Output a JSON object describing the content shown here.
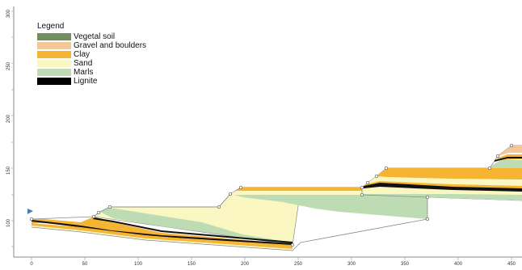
{
  "legend": {
    "title": "Legend",
    "items": [
      {
        "name": "vegetal-soil",
        "label": "Vegetal soil",
        "color": "#6f8f5e"
      },
      {
        "name": "gravel-and-boulders",
        "label": "Gravel and boulders",
        "color": "#f2c79a"
      },
      {
        "name": "clay",
        "label": "Clay",
        "color": "#f5b431"
      },
      {
        "name": "sand",
        "label": "Sand",
        "color": "#fbf7c2"
      },
      {
        "name": "marls",
        "label": "Marls",
        "color": "#bedcb4"
      },
      {
        "name": "lignite",
        "label": "Lignite",
        "color": "#000000"
      }
    ]
  },
  "axes": {
    "x_ticks": [
      "0",
      "50",
      "100",
      "150",
      "200",
      "250",
      "300",
      "350",
      "400",
      "450"
    ],
    "y_ticks": [
      "300",
      "250",
      "200",
      "150",
      "100"
    ]
  },
  "colors": {
    "boundary": "#8a8a8a",
    "vertex": "#555555",
    "axis": "#666666",
    "marker": "#4a7fb5"
  },
  "icons": {
    "marker": "triangle-marker-icon"
  }
}
